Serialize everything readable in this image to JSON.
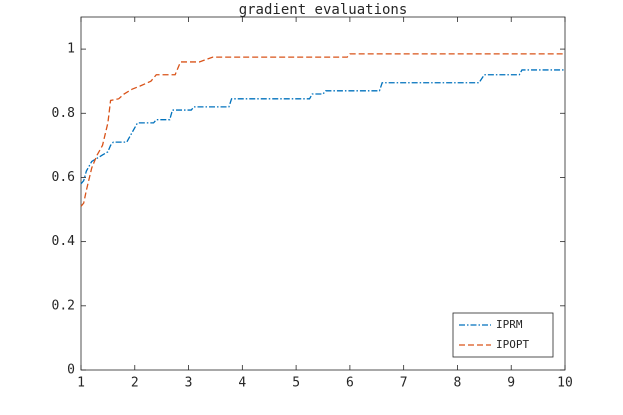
{
  "chart_data": {
    "type": "line",
    "title": "gradient evaluations",
    "xlim": [
      1,
      10
    ],
    "xticks": [
      1,
      2,
      3,
      4,
      5,
      6,
      7,
      8,
      9,
      10
    ],
    "ylim": [
      0,
      1.1
    ],
    "yticks": [
      0,
      0.2,
      0.4,
      0.6,
      0.8,
      1
    ],
    "legend": "lower right",
    "series": [
      {
        "name": "IPRM",
        "color": "#0072BD",
        "dash": "dashdot",
        "x": [
          1,
          1.05,
          1.1,
          1.2,
          1.3,
          1.4,
          1.5,
          1.55,
          1.6,
          1.85,
          1.95,
          2.05,
          2.35,
          2.4,
          2.65,
          2.7,
          3.05,
          3.1,
          3.75,
          3.8,
          5.25,
          5.3,
          5.5,
          5.55,
          6.55,
          6.6,
          8.4,
          8.5,
          9.15,
          9.2,
          10
        ],
        "values": [
          0.58,
          0.59,
          0.62,
          0.65,
          0.66,
          0.67,
          0.68,
          0.7,
          0.71,
          0.71,
          0.74,
          0.77,
          0.77,
          0.78,
          0.78,
          0.81,
          0.81,
          0.82,
          0.82,
          0.845,
          0.845,
          0.86,
          0.86,
          0.87,
          0.87,
          0.895,
          0.895,
          0.92,
          0.92,
          0.935,
          0.935
        ]
      },
      {
        "name": "IPOPT",
        "color": "#D95319",
        "dash": "dashed",
        "x": [
          1,
          1.05,
          1.1,
          1.2,
          1.3,
          1.4,
          1.5,
          1.55,
          1.7,
          1.8,
          1.95,
          2.1,
          2.3,
          2.4,
          2.75,
          2.85,
          3.2,
          3.45,
          5.95,
          6.0,
          10
        ],
        "values": [
          0.51,
          0.52,
          0.56,
          0.63,
          0.67,
          0.7,
          0.77,
          0.84,
          0.845,
          0.86,
          0.875,
          0.885,
          0.9,
          0.92,
          0.92,
          0.96,
          0.96,
          0.975,
          0.975,
          0.985,
          0.985
        ]
      }
    ]
  }
}
